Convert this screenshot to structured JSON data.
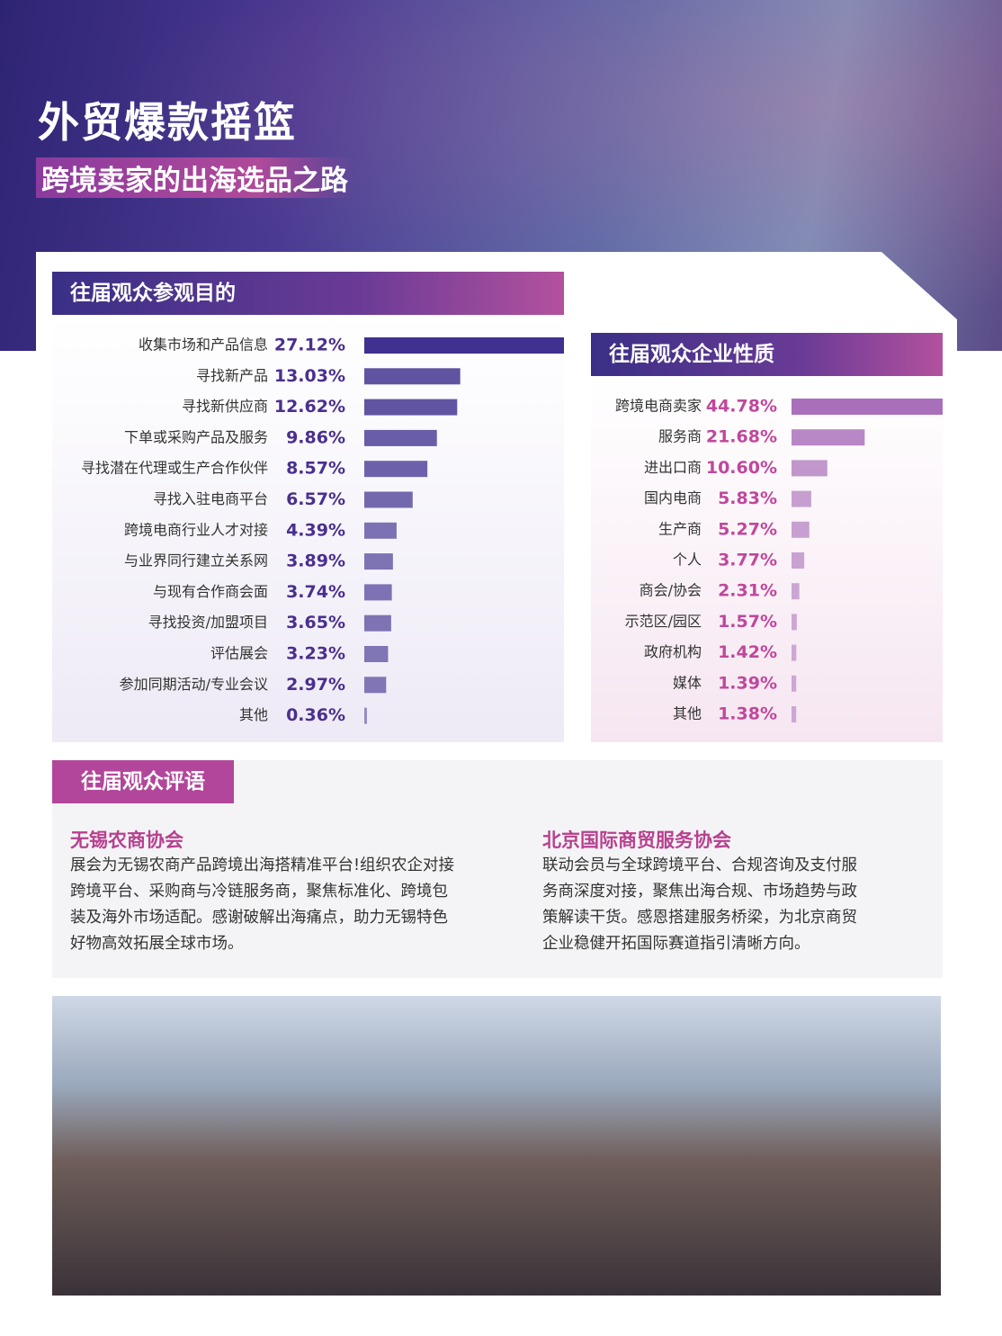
{
  "header": {
    "title": "外贸爆款摇篮",
    "subtitle": "跨境卖家的出海选品之路"
  },
  "chart_data": [
    {
      "type": "bar",
      "orientation": "horizontal",
      "title": "往届观众参观目的",
      "color": "#40308f",
      "categories": [
        "收集市场和产品信息",
        "寻找新产品",
        "寻找新供应商",
        "下单或采购产品及服务",
        "寻找潜在代理或生产合作伙伴",
        "寻找入驻电商平台",
        "跨境电商行业人才对接",
        "与业界同行建立关系网",
        "与现有合作商会面",
        "寻找投资/加盟项目",
        "评估展会",
        "参加同期活动/专业会议",
        "其他"
      ],
      "values": [
        27.12,
        13.03,
        12.62,
        9.86,
        8.57,
        6.57,
        4.39,
        3.89,
        3.74,
        3.65,
        3.23,
        2.97,
        0.36
      ],
      "value_labels": [
        "27.12%",
        "13.03%",
        "12.62%",
        "9.86%",
        "8.57%",
        "6.57%",
        "4.39%",
        "3.89%",
        "3.74%",
        "3.65%",
        "3.23%",
        "2.97%",
        "0.36%"
      ]
    },
    {
      "type": "bar",
      "orientation": "horizontal",
      "title": "往届观众企业性质",
      "color": "#a96fba",
      "categories": [
        "跨境电商卖家",
        "服务商",
        "进出口商",
        "国内电商",
        "生产商",
        "个人",
        "商会/协会",
        "示范区/园区",
        "政府机构",
        "媒体",
        "其他"
      ],
      "values": [
        44.78,
        21.68,
        10.6,
        5.83,
        5.27,
        3.77,
        2.31,
        1.57,
        1.42,
        1.39,
        1.38
      ],
      "value_labels": [
        "44.78%",
        "21.68%",
        "10.60%",
        "5.83%",
        "5.27%",
        "3.77%",
        "2.31%",
        "1.57%",
        "1.42%",
        "1.39%",
        "1.38%"
      ]
    }
  ],
  "comments": {
    "title": "往届观众评语",
    "items": [
      {
        "name": "无锡农商协会",
        "lines": [
          "展会为无锡农商产品跨境出海搭精准平台!组织农企对接",
          "跨境平台、采购商与冷链服务商，聚焦标准化、跨境包",
          "装及海外市场适配。感谢破解出海痛点，助力无锡特色",
          "好物高效拓展全球市场。"
        ]
      },
      {
        "name": "北京国际商贸服务协会",
        "lines": [
          "联动会员与全球跨境平台、合规咨询及支付服",
          "务商深度对接，聚焦出海合规、市场趋势与政",
          "策解读干货。感恩搭建服务桥梁，为北京商贸",
          "企业稳健开拓国际赛道指引清晰方向。"
        ]
      }
    ]
  }
}
